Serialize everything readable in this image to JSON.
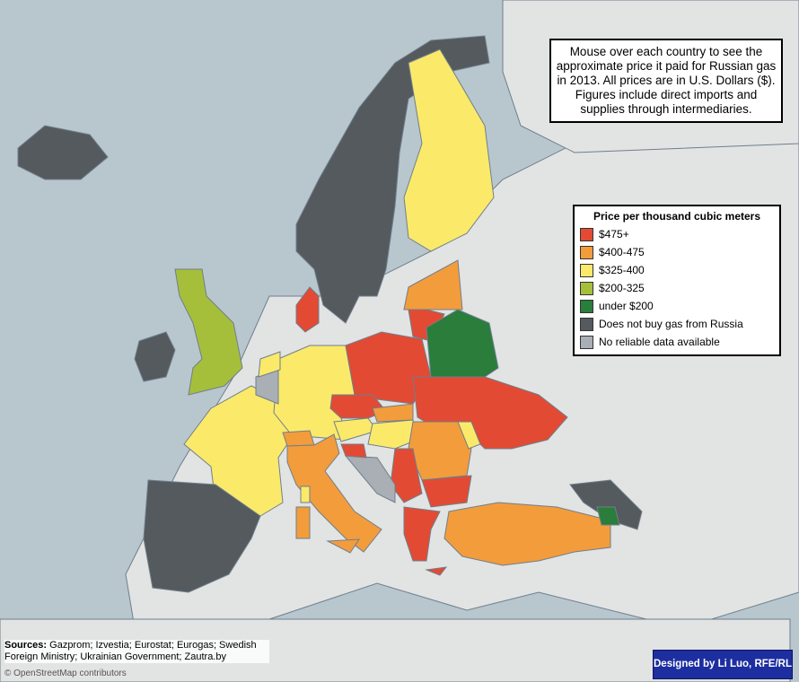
{
  "info": "Mouse over each country to see the approximate price it paid for Russian gas in 2013. All prices are in U.S. Dollars ($). Figures include direct imports and supplies through intermediaries.",
  "legend": {
    "title": "Price per thousand cubic meters",
    "items": [
      {
        "label": "$475+",
        "color": "#e34a33"
      },
      {
        "label": "$400-475",
        "color": "#f39c3c"
      },
      {
        "label": "$325-400",
        "color": "#fbe96a"
      },
      {
        "label": "$200-325",
        "color": "#a6bf3a"
      },
      {
        "label": "under $200",
        "color": "#2a7d3a"
      },
      {
        "label": "Does not buy gas from Russia",
        "color": "#555a5e"
      },
      {
        "label": "No reliable data available",
        "color": "#a9afb5"
      }
    ]
  },
  "sources": {
    "label": "Sources:",
    "text": "Gazprom; Izvestia; Eurostat; Eurogas; Swedish Foreign Ministry; Ukrainian Government; Zautra.by"
  },
  "credit": "Designed by Li Luo, RFE/RL",
  "attribution": "© OpenStreetMap contributors"
}
